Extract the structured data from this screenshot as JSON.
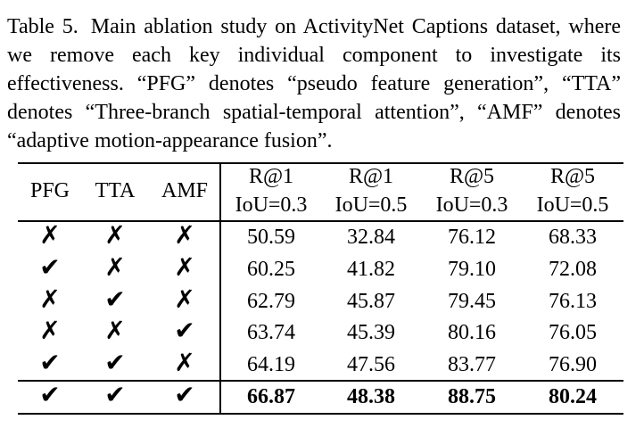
{
  "caption": {
    "label": "Table 5.",
    "text": "Main ablation study on ActivityNet Captions dataset, where we remove each key individual component to investigate its effectiveness. “PFG” denotes “pseudo feature generation”, “TTA” denotes “Three-branch spatial-temporal attention”, “AMF” denotes “adaptive motion-appearance fusion”."
  },
  "table": {
    "components": [
      "PFG",
      "TTA",
      "AMF"
    ],
    "metrics": [
      [
        "R@1",
        "IoU=0.3"
      ],
      [
        "R@1",
        "IoU=0.5"
      ],
      [
        "R@5",
        "IoU=0.3"
      ],
      [
        "R@5",
        "IoU=0.5"
      ]
    ],
    "rows": [
      [
        "✗",
        "✗",
        "✗",
        "50.59",
        "32.84",
        "76.12",
        "68.33"
      ],
      [
        "✔",
        "✗",
        "✗",
        "60.25",
        "41.82",
        "79.10",
        "72.08"
      ],
      [
        "✗",
        "✔",
        "✗",
        "62.79",
        "45.87",
        "79.45",
        "76.13"
      ],
      [
        "✗",
        "✗",
        "✔",
        "63.74",
        "45.39",
        "80.16",
        "76.05"
      ],
      [
        "✔",
        "✔",
        "✗",
        "64.19",
        "47.56",
        "83.77",
        "76.90"
      ],
      [
        "✔",
        "✔",
        "✔",
        "66.87",
        "48.38",
        "88.75",
        "80.24"
      ]
    ]
  }
}
